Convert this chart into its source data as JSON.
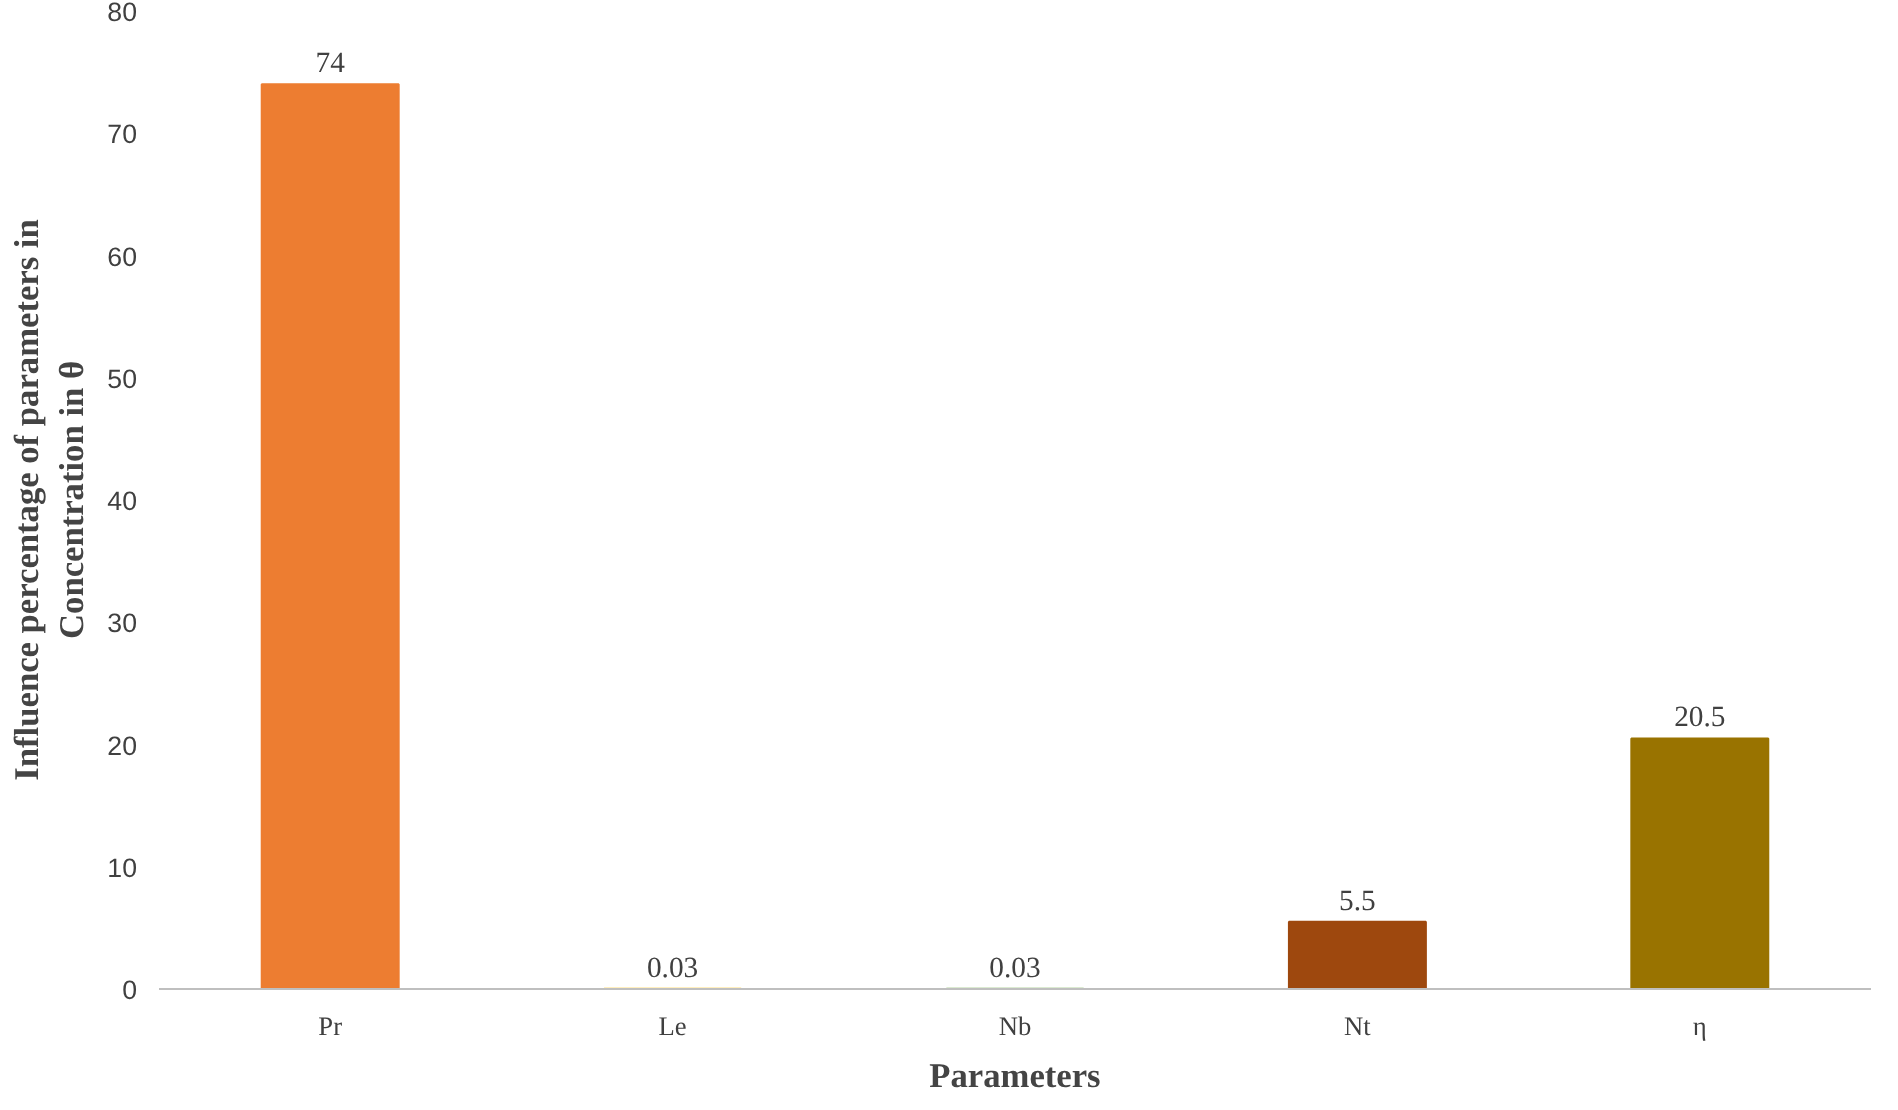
{
  "chart_data": {
    "type": "bar",
    "xlabel": "Parameters",
    "ylabel": "Influence percentage of parameters in\nConcentration in θ",
    "categories": [
      "Pr",
      "Le",
      "Nb",
      "Nt",
      "η"
    ],
    "values": [
      74,
      0.03,
      0.03,
      5.5,
      20.5
    ],
    "colors": [
      "#ed7d31",
      "#ffc000",
      "#70ad47",
      "#9e480e",
      "#997300"
    ],
    "ylim": [
      0,
      80
    ],
    "yticks": [
      0,
      10,
      20,
      30,
      40,
      50,
      60,
      70,
      80
    ],
    "grid": false,
    "data_labels": true
  }
}
